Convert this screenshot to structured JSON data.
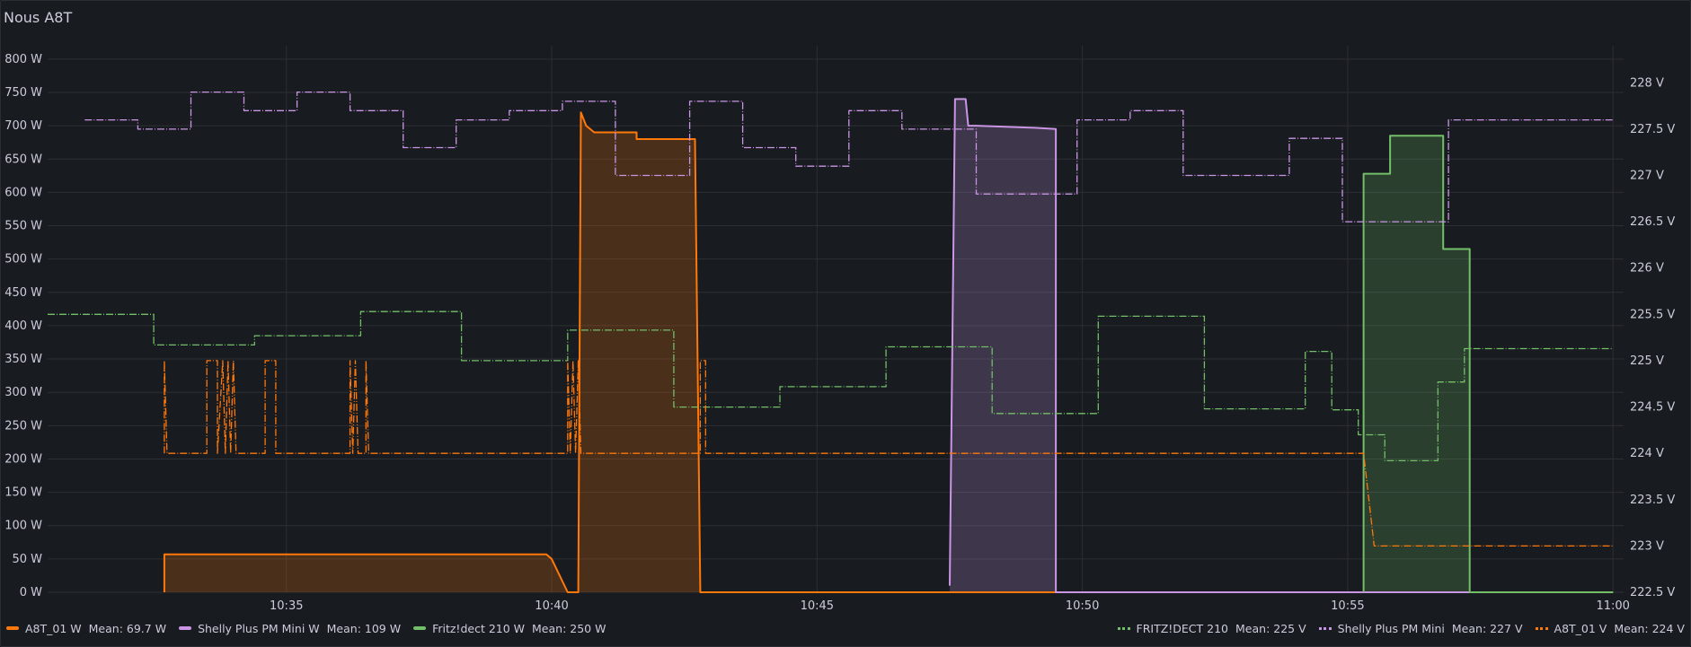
{
  "panel": {
    "title": "Nous A8T"
  },
  "chart_data": {
    "type": "line",
    "x_unit": "time",
    "x_ticks": [
      "10:35",
      "10:40",
      "10:45",
      "10:50",
      "10:55",
      "11:00"
    ],
    "x_tick_minutes": [
      35,
      40,
      45,
      50,
      55,
      60
    ],
    "x_range": [
      30.5,
      60.2
    ],
    "y_left": {
      "unit": "W",
      "range": [
        0,
        820
      ],
      "ticks": [
        0,
        50,
        100,
        150,
        200,
        250,
        300,
        350,
        400,
        450,
        500,
        550,
        600,
        650,
        700,
        750,
        800
      ],
      "tick_labels": [
        "0 W",
        "50 W",
        "100 W",
        "150 W",
        "200 W",
        "250 W",
        "300 W",
        "350 W",
        "400 W",
        "450 W",
        "500 W",
        "550 W",
        "600 W",
        "650 W",
        "700 W",
        "750 W",
        "800 W"
      ]
    },
    "y_right": {
      "unit": "V",
      "range": [
        222.5,
        228.4
      ],
      "ticks": [
        222.5,
        223,
        223.5,
        224,
        224.5,
        225,
        225.5,
        226,
        226.5,
        227,
        227.5,
        228
      ],
      "tick_labels": [
        "222.5 V",
        "223 V",
        "223.5 V",
        "224 V",
        "224.5 V",
        "225 V",
        "225.5 V",
        "226 V",
        "226.5 V",
        "227 V",
        "227.5 V",
        "228 V"
      ]
    },
    "grid": true,
    "legend_position": "bottom",
    "series": [
      {
        "name": "A8T_01 W",
        "mean": "Mean: 69.7 W",
        "axis": "left",
        "style": "solid",
        "fill": true,
        "color": "#ff780a",
        "points": [
          [
            32.7,
            0
          ],
          [
            32.7,
            57
          ],
          [
            39.9,
            57
          ],
          [
            40.0,
            50
          ],
          [
            40.3,
            0
          ],
          [
            40.5,
            0
          ],
          [
            40.55,
            720
          ],
          [
            40.65,
            700
          ],
          [
            40.8,
            690
          ],
          [
            41.6,
            690
          ],
          [
            41.6,
            680
          ],
          [
            42.7,
            680
          ],
          [
            42.8,
            0
          ],
          [
            60.0,
            0
          ]
        ]
      },
      {
        "name": "Shelly Plus PM Mini W",
        "mean": "Mean: 109 W",
        "axis": "left",
        "style": "solid",
        "fill": true,
        "color": "#ca95e5",
        "points": [
          [
            47.5,
            10
          ],
          [
            47.6,
            740
          ],
          [
            47.8,
            740
          ],
          [
            47.85,
            700
          ],
          [
            48.0,
            700
          ],
          [
            49.1,
            697
          ],
          [
            49.5,
            695
          ],
          [
            49.5,
            0
          ],
          [
            60.0,
            0
          ]
        ]
      },
      {
        "name": "Fritz!dect 210 W",
        "mean": "Mean: 250 W",
        "axis": "left",
        "style": "solid",
        "fill": true,
        "color": "#73bf69",
        "points": [
          [
            55.3,
            0
          ],
          [
            55.3,
            628
          ],
          [
            55.8,
            628
          ],
          [
            55.8,
            685
          ],
          [
            56.8,
            685
          ],
          [
            56.8,
            515
          ],
          [
            57.3,
            515
          ],
          [
            57.3,
            0
          ],
          [
            60.0,
            0
          ]
        ]
      },
      {
        "name": "FRITZ!DECT 210",
        "mean": "Mean: 225 V",
        "axis": "right",
        "style": "dashed",
        "fill": false,
        "color": "#73bf69",
        "points": [
          [
            30.5,
            225.5
          ],
          [
            32.5,
            225.5
          ],
          [
            32.5,
            225.17
          ],
          [
            34.4,
            225.17
          ],
          [
            34.4,
            225.27
          ],
          [
            36.4,
            225.27
          ],
          [
            36.4,
            225.53
          ],
          [
            38.3,
            225.53
          ],
          [
            38.3,
            225.0
          ],
          [
            40.3,
            225.0
          ],
          [
            40.3,
            225.33
          ],
          [
            42.3,
            225.33
          ],
          [
            42.3,
            224.5
          ],
          [
            44.3,
            224.5
          ],
          [
            44.3,
            224.72
          ],
          [
            46.3,
            224.72
          ],
          [
            46.3,
            225.15
          ],
          [
            48.3,
            225.15
          ],
          [
            48.3,
            224.43
          ],
          [
            50.3,
            224.43
          ],
          [
            50.3,
            225.48
          ],
          [
            52.3,
            225.48
          ],
          [
            52.3,
            224.48
          ],
          [
            54.2,
            224.48
          ],
          [
            54.2,
            225.1
          ],
          [
            54.7,
            225.1
          ],
          [
            54.7,
            224.47
          ],
          [
            55.2,
            224.47
          ],
          [
            55.2,
            224.2
          ],
          [
            55.7,
            224.2
          ],
          [
            55.7,
            223.92
          ],
          [
            56.7,
            223.92
          ],
          [
            56.7,
            224.77
          ],
          [
            57.2,
            224.77
          ],
          [
            57.2,
            225.13
          ],
          [
            60.0,
            225.13
          ]
        ]
      },
      {
        "name": "Shelly Plus PM Mini",
        "mean": "Mean: 227 V",
        "axis": "right",
        "style": "dashed",
        "fill": false,
        "color": "#ca95e5",
        "points": [
          [
            31.2,
            227.6
          ],
          [
            32.2,
            227.6
          ],
          [
            32.2,
            227.5
          ],
          [
            33.2,
            227.5
          ],
          [
            33.2,
            227.9
          ],
          [
            34.2,
            227.9
          ],
          [
            34.2,
            227.7
          ],
          [
            35.2,
            227.7
          ],
          [
            35.2,
            227.9
          ],
          [
            36.2,
            227.9
          ],
          [
            36.2,
            227.7
          ],
          [
            37.2,
            227.7
          ],
          [
            37.2,
            227.3
          ],
          [
            38.2,
            227.3
          ],
          [
            38.2,
            227.6
          ],
          [
            39.2,
            227.6
          ],
          [
            39.2,
            227.7
          ],
          [
            40.2,
            227.7
          ],
          [
            40.2,
            227.8
          ],
          [
            41.2,
            227.8
          ],
          [
            41.2,
            227.0
          ],
          [
            42.6,
            227.0
          ],
          [
            42.6,
            227.8
          ],
          [
            43.6,
            227.8
          ],
          [
            43.6,
            227.3
          ],
          [
            44.6,
            227.3
          ],
          [
            44.6,
            227.1
          ],
          [
            45.6,
            227.1
          ],
          [
            45.6,
            227.7
          ],
          [
            46.6,
            227.7
          ],
          [
            46.6,
            227.5
          ],
          [
            48.0,
            227.5
          ],
          [
            48.0,
            226.8
          ],
          [
            49.9,
            226.8
          ],
          [
            49.9,
            227.6
          ],
          [
            50.9,
            227.6
          ],
          [
            50.9,
            227.7
          ],
          [
            51.9,
            227.7
          ],
          [
            51.9,
            227.0
          ],
          [
            53.9,
            227.0
          ],
          [
            53.9,
            227.4
          ],
          [
            54.9,
            227.4
          ],
          [
            54.9,
            226.5
          ],
          [
            56.9,
            226.5
          ],
          [
            56.9,
            227.6
          ],
          [
            60.0,
            227.6
          ]
        ]
      },
      {
        "name": "A8T_01 V",
        "mean": "Mean: 224 V",
        "axis": "right",
        "style": "dashed",
        "fill": false,
        "color": "#ff780a",
        "points": [
          [
            32.7,
            224
          ],
          [
            32.7,
            225
          ],
          [
            32.75,
            224
          ],
          [
            33.5,
            224
          ],
          [
            33.5,
            225
          ],
          [
            33.7,
            225
          ],
          [
            33.7,
            224
          ],
          [
            33.8,
            225
          ],
          [
            33.85,
            224
          ],
          [
            33.9,
            225
          ],
          [
            33.95,
            224
          ],
          [
            34.0,
            225
          ],
          [
            34.05,
            224
          ],
          [
            34.6,
            224
          ],
          [
            34.6,
            225
          ],
          [
            34.8,
            225
          ],
          [
            34.8,
            224
          ],
          [
            36.2,
            224
          ],
          [
            36.2,
            225
          ],
          [
            36.25,
            224
          ],
          [
            36.3,
            225
          ],
          [
            36.35,
            224
          ],
          [
            36.5,
            224
          ],
          [
            36.5,
            225
          ],
          [
            36.55,
            224
          ],
          [
            40.3,
            224
          ],
          [
            40.3,
            225
          ],
          [
            40.35,
            224
          ],
          [
            40.4,
            225
          ],
          [
            40.45,
            224
          ],
          [
            40.5,
            225
          ],
          [
            40.55,
            224
          ],
          [
            42.8,
            224
          ],
          [
            42.8,
            225
          ],
          [
            42.9,
            225
          ],
          [
            42.9,
            224
          ],
          [
            55.3,
            224
          ],
          [
            55.3,
            224
          ],
          [
            55.5,
            223
          ],
          [
            60.0,
            223
          ]
        ]
      }
    ]
  }
}
